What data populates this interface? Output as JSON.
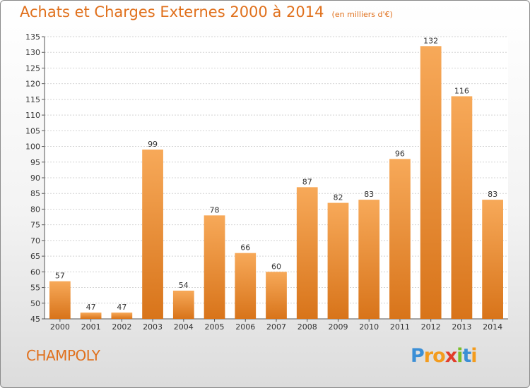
{
  "title": "Achats et Charges Externes 2000 à 2014",
  "unit_note": "(en milliers d'€)",
  "commune": "CHAMPOLY",
  "logo": {
    "letters": [
      "P",
      "r",
      "o",
      "x",
      "i",
      "t",
      "i"
    ],
    "colors": [
      "#3b8fd6",
      "#f39c1e",
      "#f39c1e",
      "#e23d2a",
      "#7bbf2a",
      "#3b8fd6",
      "#f39c1e"
    ]
  },
  "colors": {
    "bar_light": "#f7a959",
    "bar_dark": "#d8741a",
    "text": "#e0701c"
  },
  "chart_data": {
    "type": "bar",
    "categories": [
      "2000",
      "2001",
      "2002",
      "2003",
      "2004",
      "2005",
      "2006",
      "2007",
      "2008",
      "2009",
      "2010",
      "2011",
      "2012",
      "2013",
      "2014"
    ],
    "values": [
      57,
      47,
      47,
      99,
      54,
      78,
      66,
      60,
      87,
      82,
      83,
      96,
      132,
      116,
      83
    ],
    "ylim": [
      45,
      135
    ],
    "yticks": [
      45,
      50,
      55,
      60,
      65,
      70,
      75,
      80,
      85,
      90,
      95,
      100,
      105,
      110,
      115,
      120,
      125,
      130,
      135
    ],
    "grid": true
  }
}
